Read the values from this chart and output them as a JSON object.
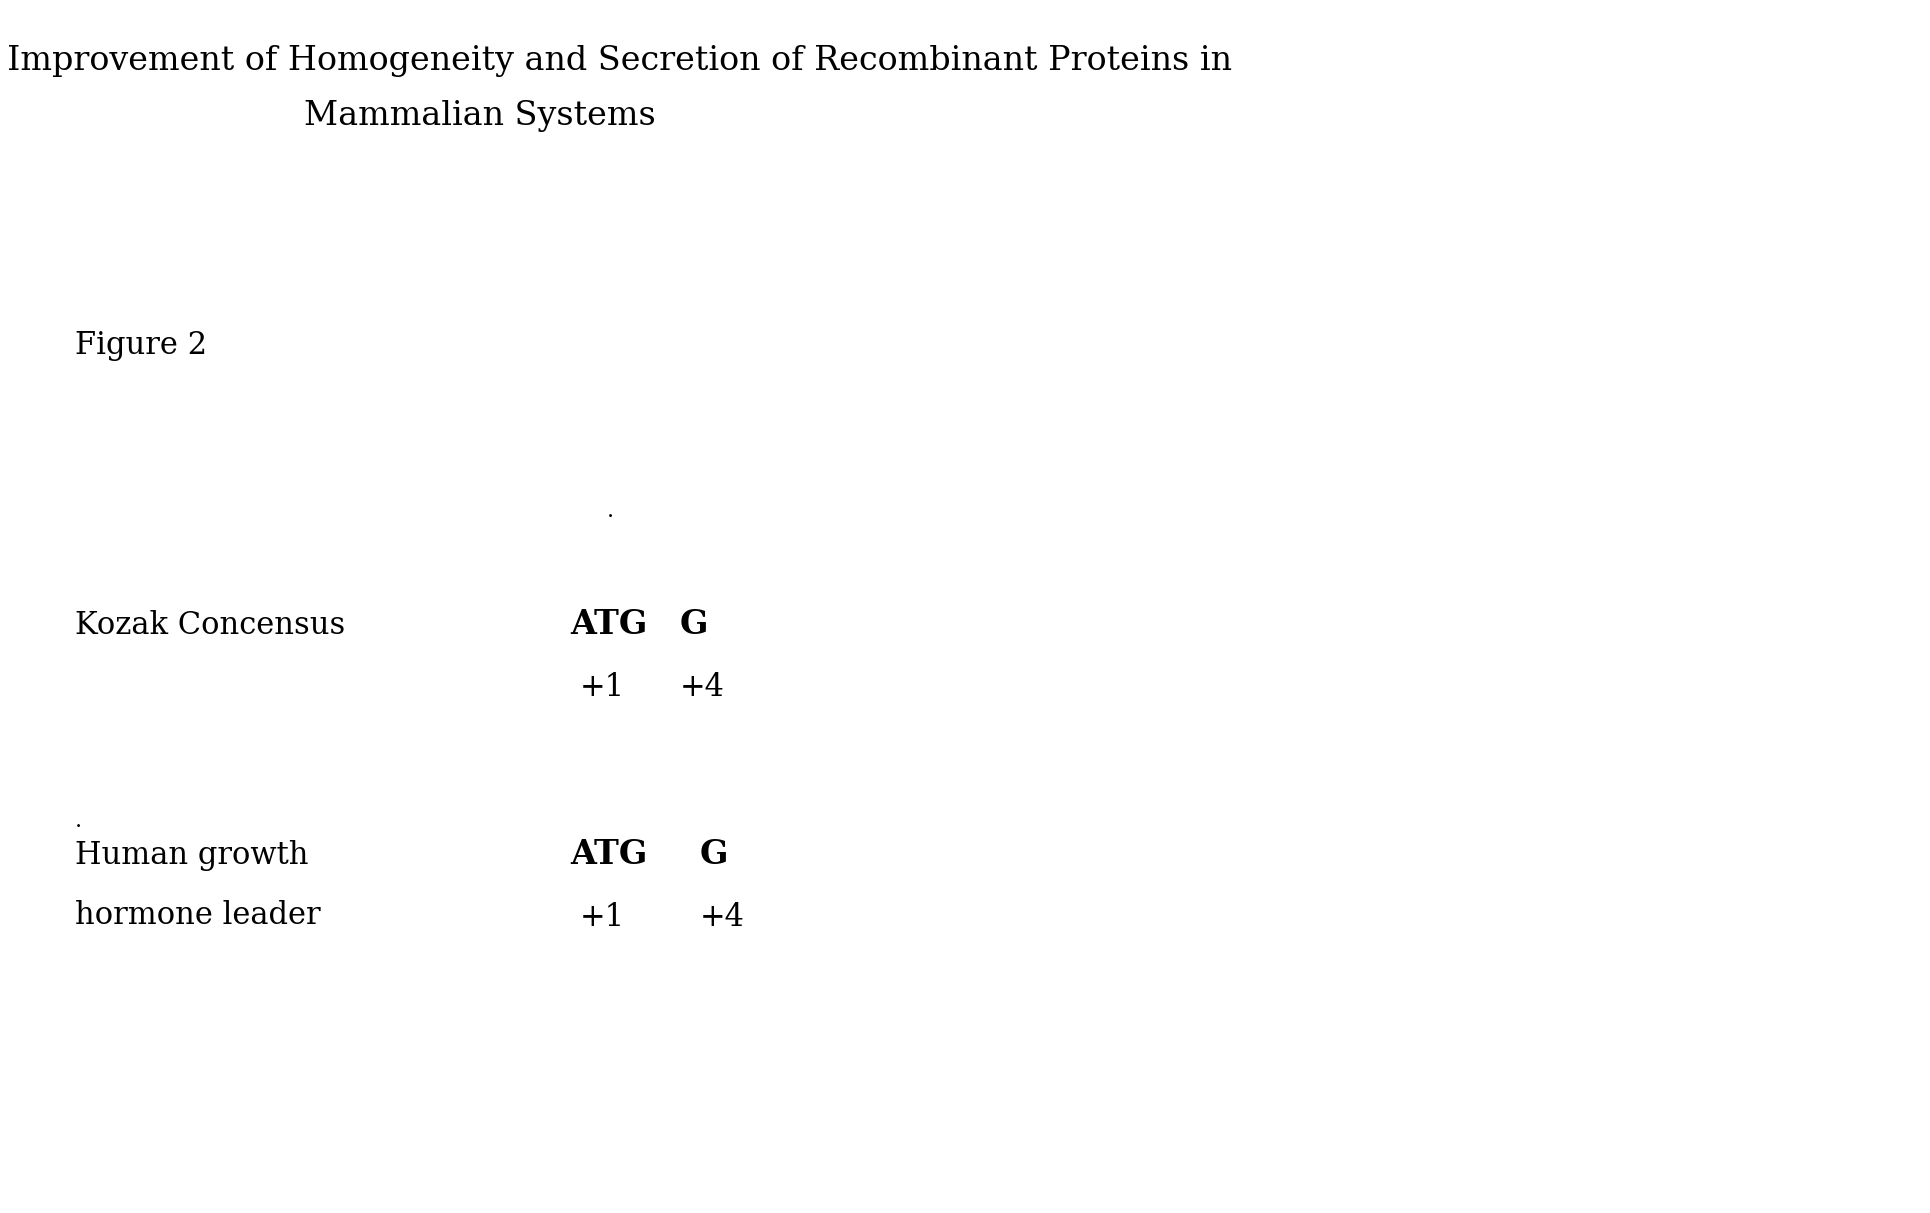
{
  "title_line1": "Title: Improvement of Homogeneity and Secretion of Recombinant Proteins in",
  "title_line2": "Mammalian Systems",
  "figure_label": "Figure 2",
  "kozak_label": "Kozak Concensus",
  "kozak_atg": "ATG",
  "kozak_g": "G",
  "kozak_pos1": "+1",
  "kozak_pos4": "+4",
  "hgh_label_line1": "Human growth",
  "hgh_label_line2": "hormone leader",
  "hgh_atg": "ATG",
  "hgh_g": "G",
  "hgh_pos1": "+1",
  "hgh_pos4": "+4",
  "bg_color": "#ffffff",
  "text_color": "#000000",
  "title_fontsize": 24,
  "label_fontsize": 22,
  "bold_fontsize": 24,
  "figure_label_fontsize": 22,
  "small_dot_fontsize": 16,
  "fig_width": 19.3,
  "fig_height": 12.13,
  "dpi": 100
}
